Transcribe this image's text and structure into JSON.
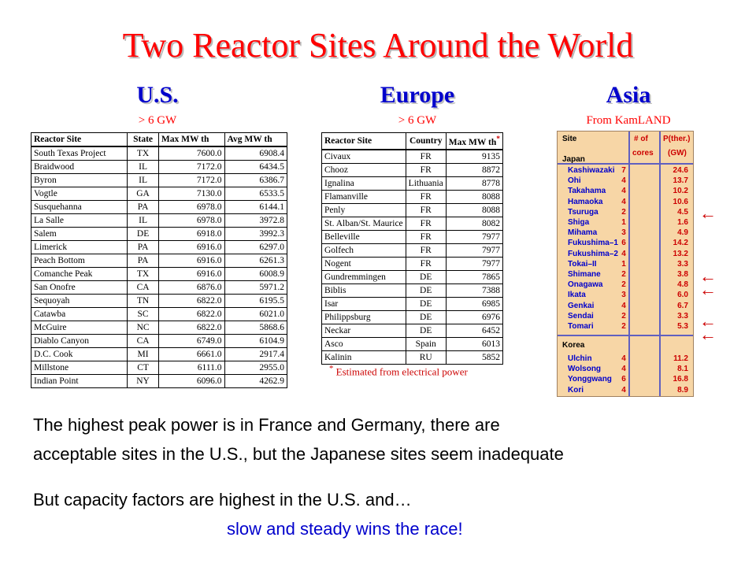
{
  "title": "Two Reactor Sites Around the World",
  "us": {
    "heading": "U.S.",
    "sub": "> 6 GW",
    "headers": [
      "Reactor Site",
      "State",
      "Max MW th",
      "Avg MW th"
    ],
    "rows": [
      [
        "South Texas Project",
        "TX",
        "7600.0",
        "6908.4"
      ],
      [
        "Braidwood",
        "IL",
        "7172.0",
        "6434.5"
      ],
      [
        "Byron",
        "IL",
        "7172.0",
        "6386.7"
      ],
      [
        "Vogtle",
        "GA",
        "7130.0",
        "6533.5"
      ],
      [
        "Susquehanna",
        "PA",
        "6978.0",
        "6144.1"
      ],
      [
        "La Salle",
        "IL",
        "6978.0",
        "3972.8"
      ],
      [
        "Salem",
        "DE",
        "6918.0",
        "3992.3"
      ],
      [
        "Limerick",
        "PA",
        "6916.0",
        "6297.0"
      ],
      [
        "Peach Bottom",
        "PA",
        "6916.0",
        "6261.3"
      ],
      [
        "Comanche Peak",
        "TX",
        "6916.0",
        "6008.9"
      ],
      [
        "San Onofre",
        "CA",
        "6876.0",
        "5971.2"
      ],
      [
        "Sequoyah",
        "TN",
        "6822.0",
        "6195.5"
      ],
      [
        "Catawba",
        "SC",
        "6822.0",
        "6021.0"
      ],
      [
        "McGuire",
        "NC",
        "6822.0",
        "5868.6"
      ],
      [
        "Diablo Canyon",
        "CA",
        "6749.0",
        "6104.9"
      ],
      [
        "D.C. Cook",
        "MI",
        "6661.0",
        "2917.4"
      ],
      [
        "Millstone",
        "CT",
        "6111.0",
        "2955.0"
      ],
      [
        "Indian Point",
        "NY",
        "6096.0",
        "4262.9"
      ]
    ]
  },
  "europe": {
    "heading": "Europe",
    "sub": "> 6 GW",
    "headers": [
      "Reactor Site",
      "Country",
      "Max MW th"
    ],
    "star": "*",
    "rows": [
      [
        "Civaux",
        "FR",
        "9135"
      ],
      [
        "Chooz",
        "FR",
        "8872"
      ],
      [
        "Ignalina",
        "Lithuania",
        "8778"
      ],
      [
        "Flamanville",
        "FR",
        "8088"
      ],
      [
        "Penly",
        "FR",
        "8088"
      ],
      [
        "St. Alban/St. Maurice",
        "FR",
        "8082"
      ],
      [
        "Belleville",
        "FR",
        "7977"
      ],
      [
        "Golfech",
        "FR",
        "7977"
      ],
      [
        "Nogent",
        "FR",
        "7977"
      ],
      [
        "Gundremmingen",
        "DE",
        "7865"
      ],
      [
        "Biblis",
        "DE",
        "7388"
      ],
      [
        "Isar",
        "DE",
        "6985"
      ],
      [
        "Philippsburg",
        "DE",
        "6976"
      ],
      [
        "Neckar",
        "DE",
        "6452"
      ],
      [
        "Asco",
        "Spain",
        "6013"
      ],
      [
        "Kalinin",
        "RU",
        "5852"
      ]
    ],
    "footnote_star": "*",
    "footnote": "Estimated from electrical power"
  },
  "asia": {
    "heading": "Asia",
    "sub": "From KamLAND",
    "h_site": "Site",
    "h_cores_1": "# of",
    "h_cores_2": "cores",
    "h_p_1": "P(ther.)",
    "h_p_2": "(GW)",
    "japan_label": "Japan",
    "japan": [
      [
        "Kashiwazaki",
        "7",
        "24.6"
      ],
      [
        "Ohi",
        "4",
        "13.7"
      ],
      [
        "Takahama",
        "4",
        "10.2"
      ],
      [
        "Hamaoka",
        "4",
        "10.6"
      ],
      [
        "Tsuruga",
        "2",
        "4.5"
      ],
      [
        "Shiga",
        "1",
        "1.6"
      ],
      [
        "Mihama",
        "3",
        "4.9"
      ],
      [
        "Fukushima–1",
        "6",
        "14.2"
      ],
      [
        "Fukushima–2",
        "4",
        "13.2"
      ],
      [
        "Tokai–II",
        "1",
        "3.3"
      ],
      [
        "Shimane",
        "2",
        "3.8"
      ],
      [
        "Onagawa",
        "2",
        "4.8"
      ],
      [
        "Ikata",
        "3",
        "6.0"
      ],
      [
        "Genkai",
        "4",
        "6.7"
      ],
      [
        "Sendai",
        "2",
        "3.3"
      ],
      [
        "Tomari",
        "2",
        "5.3"
      ]
    ],
    "korea_label": "Korea",
    "korea": [
      [
        "Ulchin",
        "4",
        "11.2"
      ],
      [
        "Wolsong",
        "4",
        "8.1"
      ],
      [
        "Yonggwang",
        "6",
        "16.8"
      ],
      [
        "Kori",
        "4",
        "8.9"
      ]
    ]
  },
  "text": {
    "line1": "The highest peak power is in France and Germany, there are",
    "line2": "acceptable sites in the U.S., but the Japanese sites seem inadequate",
    "line3": "But capacity factors are highest in the U.S. and…",
    "line4": "slow and steady wins the race!"
  }
}
